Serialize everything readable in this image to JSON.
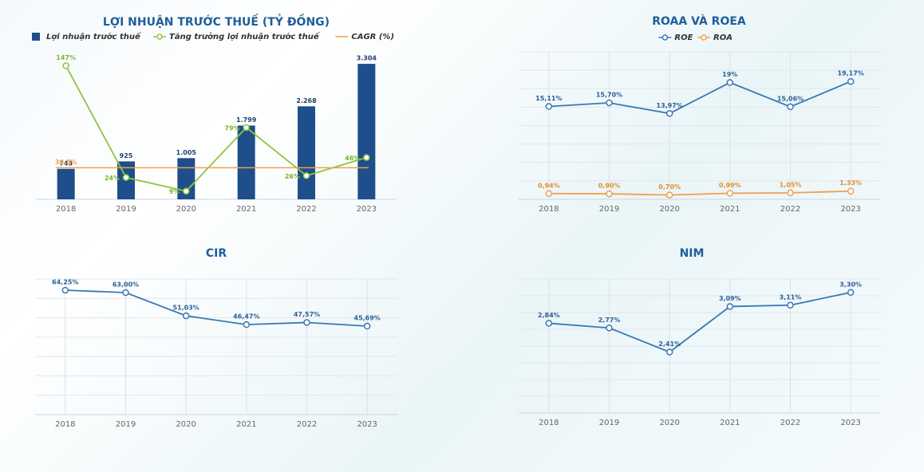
{
  "chart_data": [
    {
      "type": "combo",
      "title": "LỢI NHUẬN TRƯỚC THUẾ (TỶ ĐỒNG)",
      "categories": [
        "2018",
        "2019",
        "2020",
        "2021",
        "2022",
        "2023"
      ],
      "series": [
        {
          "name": "Lợi nhuận trước thuế",
          "type": "bar",
          "color": "#1f4e8c",
          "values": [
            743,
            925,
            1005,
            1799,
            2268,
            3304
          ],
          "value_labels": [
            "743",
            "925",
            "1.005",
            "1.799",
            "2.268",
            "3.304"
          ]
        },
        {
          "name": "Tăng trưởng lợi nhuận trước thuế",
          "type": "line",
          "axis": "y2",
          "color": "#8dc63f",
          "values": [
            147,
            24,
            9,
            79,
            26,
            46
          ],
          "value_labels": [
            "147%",
            "24%",
            "9%",
            "79%",
            "26%",
            "46%"
          ]
        },
        {
          "name": "CAGR (%)",
          "type": "hline",
          "axis": "y2",
          "color": "#f0a04b",
          "value": 34.8,
          "value_label": "34,8%"
        }
      ],
      "ylim": [
        0,
        3500
      ],
      "y2lim": [
        0,
        158
      ],
      "grid": false
    },
    {
      "type": "line",
      "title": "ROAA VÀ ROEA",
      "categories": [
        "2018",
        "2019",
        "2020",
        "2021",
        "2022",
        "2023"
      ],
      "series": [
        {
          "name": "ROE",
          "color": "#3b78b5",
          "values": [
            15.11,
            15.7,
            13.97,
            19,
            15.06,
            19.17
          ],
          "value_labels": [
            "15,11%",
            "15,70%",
            "13,97%",
            "19%",
            "15,06%",
            "19,17%"
          ]
        },
        {
          "name": "ROA",
          "color": "#f0a04b",
          "values": [
            0.94,
            0.9,
            0.7,
            0.99,
            1.05,
            1.33
          ],
          "value_labels": [
            "0,94%",
            "0,90%",
            "0,70%",
            "0,99%",
            "1,05%",
            "1,33%"
          ]
        }
      ],
      "ylim": [
        0,
        24
      ],
      "yticks": [
        0,
        3,
        6,
        9,
        12,
        15,
        18,
        21,
        24
      ],
      "grid": true
    },
    {
      "type": "line",
      "title": "CIR",
      "categories": [
        "2018",
        "2019",
        "2020",
        "2021",
        "2022",
        "2023"
      ],
      "series": [
        {
          "color": "#3b78b5",
          "values": [
            64.25,
            63.0,
            51.03,
            46.47,
            47.57,
            45.69
          ],
          "value_labels": [
            "64,25%",
            "63,00%",
            "51,03%",
            "46,47%",
            "47,57%",
            "45,69%"
          ]
        }
      ],
      "ylim": [
        0,
        70
      ],
      "yticks": [
        0,
        10,
        20,
        30,
        40,
        50,
        60,
        70
      ],
      "grid": true
    },
    {
      "type": "line",
      "title": "NIM",
      "categories": [
        "2018",
        "2019",
        "2020",
        "2021",
        "2022",
        "2023"
      ],
      "series": [
        {
          "color": "#3b78b5",
          "values": [
            2.84,
            2.77,
            2.41,
            3.09,
            3.11,
            3.3
          ],
          "value_labels": [
            "2,84%",
            "2,77%",
            "2,41%",
            "3,09%",
            "3,11%",
            "3,30%"
          ]
        }
      ],
      "ylim": [
        1.5,
        3.5
      ],
      "yticks": [
        1.5,
        1.75,
        2,
        2.25,
        2.5,
        2.75,
        3,
        3.25,
        3.5
      ],
      "grid": true
    }
  ]
}
